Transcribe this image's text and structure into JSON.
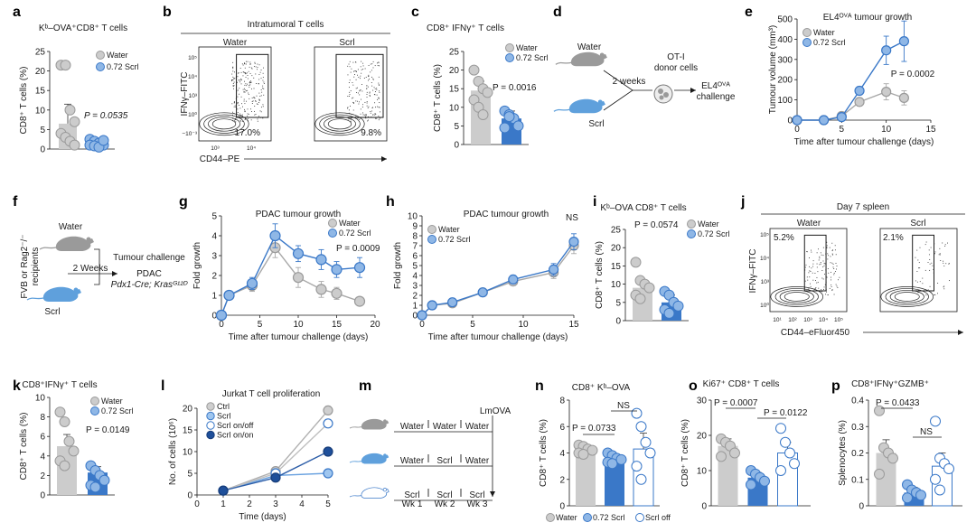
{
  "colors": {
    "water": "#cccccc",
    "scrl": "#8fb7e6",
    "scrl_dark": "#3a78c8",
    "scrl_off": "#ffffff",
    "edge_blue": "#3a78c8",
    "edge_grey": "#9a9a9a",
    "mouse_grey": "#9a9a9a",
    "mouse_blue": "#5fa0dc"
  },
  "panel_a": {
    "label": "a",
    "title": "Kᵇ–OVA⁺CD8⁺ T cells",
    "ylabel": "CD8⁺ T cells (%)",
    "p": "P = 0.0535",
    "yticks": [
      "0",
      "5",
      "10",
      "15",
      "20",
      "25"
    ],
    "legend": [
      "Water",
      "0.72 Scrl"
    ]
  },
  "panel_b": {
    "label": "b",
    "title": "Intratumoral T cells",
    "groups": [
      "Water",
      "Scrl"
    ],
    "pct": [
      "17.0%",
      "9.8%"
    ],
    "ylabel": "IFNγ–FITC",
    "xlabel": "CD44–PE",
    "yticks": [
      "10⁵",
      "10⁴",
      "10³",
      "10⁰",
      "−10⁻³"
    ],
    "xticks": [
      "10³",
      "10⁴"
    ]
  },
  "panel_c": {
    "label": "c",
    "title": "CD8⁺ IFNγ⁺ T cells",
    "ylabel": "CD8⁺ T cells (%)",
    "p": "P = 0.0016",
    "yticks": [
      "0",
      "5",
      "10",
      "15",
      "20",
      "25"
    ],
    "legend": [
      "Water",
      "0.72 Scrl"
    ]
  },
  "panel_d": {
    "label": "d",
    "water": "Water",
    "scrl": "Scrl",
    "weeks": "2 weeks",
    "donor": "OT-I\ndonor cells",
    "donor_l1": "OT-I",
    "donor_l2": "donor cells",
    "challenge_l1": "EL4ᴼⱽᴬ",
    "challenge_l2": "challenge"
  },
  "panel_e": {
    "label": "e",
    "title": "EL4ᴼⱽᴬ tumour growth",
    "ylabel": "Tumour volume (mm³)",
    "xlabel": "Time after tumour challenge (days)",
    "p": "P = 0.0002",
    "legend": [
      "Water",
      "0.72 Scrl"
    ],
    "yticks": [
      "0",
      "100",
      "200",
      "300",
      "400",
      "500"
    ],
    "xticks": [
      "0",
      "5",
      "10",
      "15"
    ]
  },
  "panel_f": {
    "label": "f",
    "water": "Water",
    "scrl": "Scrl",
    "recipients": "FVB or Rag2⁻/⁻",
    "recipients2": "recipients",
    "weeks": "2 Weeks",
    "challenge": "Tumour challenge",
    "pdac": "PDAC",
    "genotype": "Pdx1-Cre; Krasᴳ¹²ᴰ"
  },
  "panel_g": {
    "label": "g",
    "title": "PDAC tumour growth",
    "ylabel": "Fold growth",
    "xlabel": "Time after tumour challenge (days)",
    "p": "P = 0.0009",
    "legend": [
      "Water",
      "0.72 Scrl"
    ],
    "yticks": [
      "0",
      "1",
      "2",
      "3",
      "4",
      "5"
    ],
    "xticks": [
      "0",
      "5",
      "10",
      "15",
      "20"
    ]
  },
  "panel_h": {
    "label": "h",
    "title": "PDAC tumour growth",
    "ylabel": "Fold growth",
    "xlabel": "Time after tumour challenge (days)",
    "ns": "NS",
    "legend": [
      "Water",
      "0.72 Scrl"
    ],
    "yticks": [
      "0",
      "1",
      "2",
      "3",
      "4",
      "5",
      "6",
      "7",
      "8",
      "9",
      "10"
    ],
    "xticks": [
      "0",
      "5",
      "10",
      "15"
    ]
  },
  "panel_i": {
    "label": "i",
    "title": "Kᵇ–OVA CD8⁺ T cells",
    "ylabel": "CD8⁺ T cells (%)",
    "p": "P = 0.0574",
    "legend": [
      "Water",
      "0.72 Scrl"
    ],
    "yticks": [
      "0",
      "5",
      "10",
      "15",
      "20",
      "25"
    ]
  },
  "panel_j": {
    "label": "j",
    "title": "Day 7 spleen",
    "groups": [
      "Water",
      "Scrl"
    ],
    "pct": [
      "5.2%",
      "2.1%"
    ],
    "ylabel": "IFNγ–FITC",
    "xlabel": "CD44–eFluor450",
    "yticks": [
      "10⁵",
      "10⁴",
      "10³",
      "10⁰"
    ],
    "xticks": [
      "10¹",
      "10²",
      "10³",
      "10⁴",
      "10⁵"
    ]
  },
  "panel_k": {
    "label": "k",
    "title": "CD8⁺IFNγ⁺ T cells",
    "ylabel": "CD8⁺ T cells (%)",
    "p": "P = 0.0149",
    "legend": [
      "Water",
      "0.72 Scrl"
    ],
    "yticks": [
      "0",
      "2",
      "4",
      "6",
      "8",
      "10"
    ]
  },
  "panel_l": {
    "label": "l",
    "title": "Jurkat T cell proliferation",
    "ylabel": "No. of cells (10⁶)",
    "xlabel": "Time (days)",
    "legend": [
      "Ctrl",
      "Scrl",
      "Scrl on/off",
      "Scrl on/on"
    ],
    "yticks": [
      "0",
      "5",
      "10",
      "15",
      "20"
    ],
    "xticks": [
      "0",
      "1",
      "2",
      "3",
      "4",
      "5"
    ]
  },
  "panel_m": {
    "label": "m",
    "lmova": "LmOVA",
    "row1": [
      "Water",
      "Water",
      "Water"
    ],
    "row2": [
      "Water",
      "Scrl",
      "Water"
    ],
    "row3": [
      "Scrl",
      "Scrl",
      "Scrl"
    ],
    "weeks": [
      "Wk 1",
      "Wk 2",
      "Wk 3"
    ]
  },
  "panel_n": {
    "label": "n",
    "title": "CD8⁺ Kᵇ–OVA",
    "ylabel": "CD8⁺ T cells (%)",
    "p": "P = 0.0733",
    "ns": "NS",
    "yticks": [
      "0",
      "2",
      "4",
      "6",
      "8"
    ],
    "legend": [
      "Water",
      "0.72 Scrl",
      "Scrl off"
    ]
  },
  "panel_o": {
    "label": "o",
    "title": "Ki67⁺ CD8⁺ T cells",
    "ylabel": "CD8⁺ T cells (%)",
    "p1": "P = 0.0007",
    "p2": "P = 0.0122",
    "yticks": [
      "0",
      "10",
      "20",
      "30"
    ]
  },
  "panel_p": {
    "label": "p",
    "title": "CD8⁺IFNγ⁺GZMB⁺",
    "ylabel": "Splenocytes (%)",
    "p": "P = 0.0433",
    "ns": "NS",
    "yticks": [
      "0",
      "0.1",
      "0.2",
      "0.3",
      "0.4"
    ]
  },
  "chart_data": [
    {
      "panel": "a",
      "type": "bar",
      "categories": [
        "Water",
        "0.72 Scrl"
      ],
      "values": [
        6.5,
        1.7
      ],
      "errors": [
        5,
        0.8
      ],
      "ylim": [
        0,
        25
      ],
      "points": [
        [
          21.5,
          21.5,
          10,
          7,
          4,
          3,
          2,
          1
        ],
        [
          2.5,
          2,
          1.5,
          1,
          1,
          0.8,
          0.5,
          2.2
        ]
      ]
    },
    {
      "panel": "c",
      "type": "bar",
      "categories": [
        "Water",
        "0.72 Scrl"
      ],
      "values": [
        14.5,
        7
      ],
      "errors": [
        2.5,
        2
      ],
      "ylim": [
        0,
        25
      ],
      "points": [
        [
          20,
          17,
          15,
          14,
          12,
          10,
          8
        ],
        [
          9,
          8,
          7,
          5,
          4.5,
          7.5
        ]
      ]
    },
    {
      "panel": "e",
      "type": "line",
      "x": [
        0,
        3,
        5,
        7,
        10,
        12
      ],
      "series": [
        {
          "name": "Water",
          "values": [
            0,
            0,
            20,
            90,
            140,
            110
          ],
          "errors": [
            0,
            0,
            5,
            20,
            40,
            35
          ]
        },
        {
          "name": "0.72 Scrl",
          "values": [
            0,
            0,
            15,
            145,
            345,
            390
          ],
          "errors": [
            0,
            0,
            5,
            20,
            70,
            100
          ]
        }
      ],
      "ylim": [
        0,
        500
      ],
      "xlim": [
        0,
        15
      ]
    },
    {
      "panel": "g",
      "type": "line",
      "x": [
        0,
        1,
        4,
        7,
        10,
        13,
        15,
        18
      ],
      "series": [
        {
          "name": "Water",
          "values": [
            0,
            1,
            1.5,
            3.4,
            1.9,
            1.3,
            1.1,
            0.7
          ],
          "errors": [
            0,
            0.1,
            0.3,
            0.5,
            0.5,
            0.4,
            0.3,
            0.1
          ]
        },
        {
          "name": "0.72 Scrl",
          "values": [
            0,
            1,
            1.6,
            4.0,
            3.1,
            2.8,
            2.3,
            2.4
          ],
          "errors": [
            0,
            0.1,
            0.3,
            0.6,
            0.4,
            0.5,
            0.4,
            0.5
          ]
        }
      ],
      "ylim": [
        0,
        5
      ],
      "xlim": [
        0,
        20
      ]
    },
    {
      "panel": "h",
      "type": "line",
      "x": [
        0,
        1,
        3,
        6,
        9,
        13,
        15
      ],
      "series": [
        {
          "name": "Water",
          "values": [
            0,
            1,
            1.2,
            2.3,
            3.4,
            4.3,
            7.0
          ],
          "errors": [
            0,
            0.1,
            0.2,
            0.2,
            0.4,
            0.6,
            0.8
          ]
        },
        {
          "name": "0.72 Scrl",
          "values": [
            0,
            1,
            1.3,
            2.3,
            3.6,
            4.6,
            7.4
          ],
          "errors": [
            0,
            0.1,
            0.2,
            0.2,
            0.4,
            0.6,
            0.8
          ]
        }
      ],
      "ylim": [
        0,
        10
      ],
      "xlim": [
        0,
        15
      ]
    },
    {
      "panel": "i",
      "type": "bar",
      "categories": [
        "Water",
        "0.72 Scrl"
      ],
      "values": [
        9,
        5
      ],
      "errors": [
        2,
        2
      ],
      "ylim": [
        0,
        25
      ],
      "points": [
        [
          16,
          11,
          10,
          9,
          7,
          6
        ],
        [
          8,
          7,
          5,
          4,
          3,
          2
        ]
      ]
    },
    {
      "panel": "k",
      "type": "bar",
      "categories": [
        "Water",
        "0.72 Scrl"
      ],
      "values": [
        5,
        2.3
      ],
      "errors": [
        1.2,
        0.6
      ],
      "ylim": [
        0,
        10
      ],
      "points": [
        [
          8.5,
          7.5,
          5.5,
          4.5,
          3.5,
          3
        ],
        [
          3,
          2.5,
          2,
          1.5,
          1,
          0.8
        ]
      ]
    },
    {
      "panel": "l",
      "type": "line",
      "x": [
        1,
        3,
        5
      ],
      "series": [
        {
          "name": "Ctrl",
          "values": [
            1,
            5.5,
            19.5
          ]
        },
        {
          "name": "Scrl",
          "values": [
            1,
            4.5,
            5
          ]
        },
        {
          "name": "Scrl on/off",
          "values": [
            1,
            5,
            16.5
          ]
        },
        {
          "name": "Scrl on/on",
          "values": [
            1,
            4,
            10
          ]
        }
      ],
      "ylim": [
        0,
        20
      ],
      "xlim": [
        0,
        5
      ]
    },
    {
      "panel": "n",
      "type": "bar",
      "categories": [
        "Water",
        "0.72 Scrl",
        "Scrl off"
      ],
      "values": [
        4.3,
        3.6,
        4.3
      ],
      "errors": [
        0.3,
        0.3,
        1.2
      ],
      "ylim": [
        0,
        8
      ],
      "points": [
        [
          4.6,
          4.5,
          4.3,
          4.2,
          4,
          3.9
        ],
        [
          4,
          3.8,
          3.6,
          3.5,
          3.3,
          3.2
        ],
        [
          7,
          6,
          4.8,
          4,
          3,
          2
        ]
      ]
    },
    {
      "panel": "o",
      "type": "bar",
      "categories": [
        "Water",
        "0.72 Scrl",
        "Scrl off"
      ],
      "values": [
        17,
        8,
        15
      ],
      "errors": [
        2,
        1.5,
        3
      ],
      "ylim": [
        0,
        30
      ],
      "points": [
        [
          19,
          18,
          17,
          15,
          14
        ],
        [
          10,
          9,
          8,
          7,
          6
        ],
        [
          22,
          18,
          15,
          12,
          10
        ]
      ]
    },
    {
      "panel": "p",
      "type": "bar",
      "categories": [
        "Water",
        "0.72 Scrl",
        "Scrl off"
      ],
      "values": [
        0.2,
        0.05,
        0.15
      ],
      "errors": [
        0.05,
        0.02,
        0.05
      ],
      "ylim": [
        0,
        0.4
      ],
      "points": [
        [
          0.36,
          0.22,
          0.2,
          0.18,
          0.12
        ],
        [
          0.08,
          0.06,
          0.05,
          0.04,
          0.03
        ],
        [
          0.32,
          0.18,
          0.16,
          0.14,
          0.1,
          0.06
        ]
      ]
    }
  ]
}
